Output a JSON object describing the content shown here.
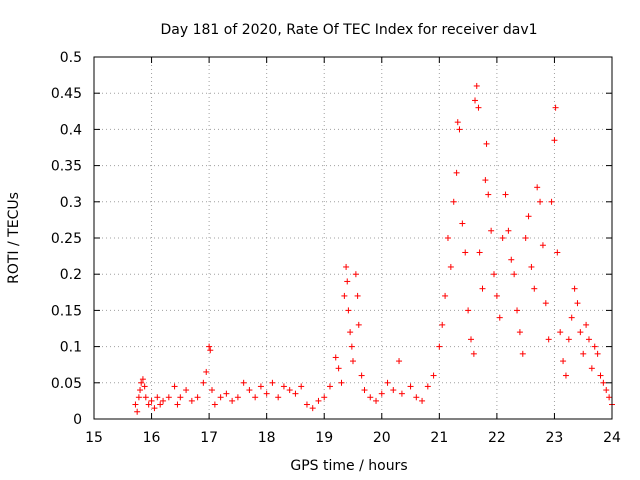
{
  "chart_data": {
    "type": "scatter",
    "title": "Day 181 of 2020, Rate Of TEC Index for receiver dav1",
    "xlabel": "GPS time / hours",
    "ylabel": "ROTI / TECUs",
    "xlim": [
      15,
      24
    ],
    "ylim": [
      0,
      0.5
    ],
    "grid": true,
    "marker": "+",
    "color": "#ff0000",
    "x_ticks": [
      {
        "value": 15,
        "label": "15"
      },
      {
        "value": 16,
        "label": "16"
      },
      {
        "value": 17,
        "label": "17"
      },
      {
        "value": 18,
        "label": "18"
      },
      {
        "value": 19,
        "label": "19"
      },
      {
        "value": 20,
        "label": "20"
      },
      {
        "value": 21,
        "label": "21"
      },
      {
        "value": 22,
        "label": "22"
      },
      {
        "value": 23,
        "label": "23"
      },
      {
        "value": 24,
        "label": "24"
      }
    ],
    "y_ticks": [
      {
        "value": 0,
        "label": "0"
      },
      {
        "value": 0.05,
        "label": "0.05"
      },
      {
        "value": 0.1,
        "label": "0.1"
      },
      {
        "value": 0.15,
        "label": "0.15"
      },
      {
        "value": 0.2,
        "label": "0.2"
      },
      {
        "value": 0.25,
        "label": "0.25"
      },
      {
        "value": 0.3,
        "label": "0.3"
      },
      {
        "value": 0.35,
        "label": "0.35"
      },
      {
        "value": 0.4,
        "label": "0.4"
      },
      {
        "value": 0.45,
        "label": "0.45"
      },
      {
        "value": 0.5,
        "label": "0.5"
      }
    ],
    "points": [
      [
        15.72,
        0.02
      ],
      [
        15.75,
        0.01
      ],
      [
        15.78,
        0.03
      ],
      [
        15.8,
        0.04
      ],
      [
        15.82,
        0.05
      ],
      [
        15.85,
        0.055
      ],
      [
        15.88,
        0.045
      ],
      [
        15.9,
        0.03
      ],
      [
        15.95,
        0.02
      ],
      [
        16.0,
        0.025
      ],
      [
        16.05,
        0.015
      ],
      [
        16.1,
        0.03
      ],
      [
        16.15,
        0.02
      ],
      [
        16.2,
        0.025
      ],
      [
        16.3,
        0.03
      ],
      [
        16.4,
        0.045
      ],
      [
        16.45,
        0.02
      ],
      [
        16.5,
        0.03
      ],
      [
        16.6,
        0.04
      ],
      [
        16.7,
        0.025
      ],
      [
        16.8,
        0.03
      ],
      [
        16.9,
        0.05
      ],
      [
        16.95,
        0.065
      ],
      [
        17.0,
        0.1
      ],
      [
        17.02,
        0.095
      ],
      [
        17.05,
        0.04
      ],
      [
        17.1,
        0.02
      ],
      [
        17.2,
        0.03
      ],
      [
        17.3,
        0.035
      ],
      [
        17.4,
        0.025
      ],
      [
        17.5,
        0.03
      ],
      [
        17.6,
        0.05
      ],
      [
        17.7,
        0.04
      ],
      [
        17.8,
        0.03
      ],
      [
        17.9,
        0.045
      ],
      [
        18.0,
        0.035
      ],
      [
        18.1,
        0.05
      ],
      [
        18.2,
        0.03
      ],
      [
        18.3,
        0.045
      ],
      [
        18.4,
        0.04
      ],
      [
        18.5,
        0.035
      ],
      [
        18.6,
        0.045
      ],
      [
        18.7,
        0.02
      ],
      [
        18.8,
        0.015
      ],
      [
        18.9,
        0.025
      ],
      [
        19.0,
        0.03
      ],
      [
        19.1,
        0.045
      ],
      [
        19.2,
        0.085
      ],
      [
        19.25,
        0.07
      ],
      [
        19.3,
        0.05
      ],
      [
        19.35,
        0.17
      ],
      [
        19.38,
        0.21
      ],
      [
        19.4,
        0.19
      ],
      [
        19.42,
        0.15
      ],
      [
        19.45,
        0.12
      ],
      [
        19.48,
        0.1
      ],
      [
        19.5,
        0.08
      ],
      [
        19.55,
        0.2
      ],
      [
        19.58,
        0.17
      ],
      [
        19.6,
        0.13
      ],
      [
        19.65,
        0.06
      ],
      [
        19.7,
        0.04
      ],
      [
        19.8,
        0.03
      ],
      [
        19.9,
        0.025
      ],
      [
        20.0,
        0.035
      ],
      [
        20.1,
        0.05
      ],
      [
        20.2,
        0.04
      ],
      [
        20.3,
        0.08
      ],
      [
        20.35,
        0.035
      ],
      [
        20.5,
        0.045
      ],
      [
        20.6,
        0.03
      ],
      [
        20.7,
        0.025
      ],
      [
        20.8,
        0.045
      ],
      [
        20.9,
        0.06
      ],
      [
        21.0,
        0.1
      ],
      [
        21.05,
        0.13
      ],
      [
        21.1,
        0.17
      ],
      [
        21.15,
        0.25
      ],
      [
        21.2,
        0.21
      ],
      [
        21.25,
        0.3
      ],
      [
        21.3,
        0.34
      ],
      [
        21.32,
        0.41
      ],
      [
        21.35,
        0.4
      ],
      [
        21.4,
        0.27
      ],
      [
        21.45,
        0.23
      ],
      [
        21.5,
        0.15
      ],
      [
        21.55,
        0.11
      ],
      [
        21.6,
        0.09
      ],
      [
        21.62,
        0.44
      ],
      [
        21.65,
        0.46
      ],
      [
        21.68,
        0.43
      ],
      [
        21.7,
        0.23
      ],
      [
        21.75,
        0.18
      ],
      [
        21.8,
        0.33
      ],
      [
        21.82,
        0.38
      ],
      [
        21.85,
        0.31
      ],
      [
        21.9,
        0.26
      ],
      [
        21.95,
        0.2
      ],
      [
        22.0,
        0.17
      ],
      [
        22.05,
        0.14
      ],
      [
        22.1,
        0.25
      ],
      [
        22.15,
        0.31
      ],
      [
        22.2,
        0.26
      ],
      [
        22.25,
        0.22
      ],
      [
        22.3,
        0.2
      ],
      [
        22.35,
        0.15
      ],
      [
        22.4,
        0.12
      ],
      [
        22.45,
        0.09
      ],
      [
        22.5,
        0.25
      ],
      [
        22.55,
        0.28
      ],
      [
        22.6,
        0.21
      ],
      [
        22.65,
        0.18
      ],
      [
        22.7,
        0.32
      ],
      [
        22.75,
        0.3
      ],
      [
        22.8,
        0.24
      ],
      [
        22.85,
        0.16
      ],
      [
        22.9,
        0.11
      ],
      [
        22.95,
        0.3
      ],
      [
        23.0,
        0.385
      ],
      [
        23.02,
        0.43
      ],
      [
        23.05,
        0.23
      ],
      [
        23.1,
        0.12
      ],
      [
        23.15,
        0.08
      ],
      [
        23.2,
        0.06
      ],
      [
        23.25,
        0.11
      ],
      [
        23.3,
        0.14
      ],
      [
        23.35,
        0.18
      ],
      [
        23.4,
        0.16
      ],
      [
        23.45,
        0.12
      ],
      [
        23.5,
        0.09
      ],
      [
        23.55,
        0.13
      ],
      [
        23.6,
        0.11
      ],
      [
        23.65,
        0.07
      ],
      [
        23.7,
        0.1
      ],
      [
        23.75,
        0.09
      ],
      [
        23.8,
        0.06
      ],
      [
        23.85,
        0.05
      ],
      [
        23.9,
        0.04
      ],
      [
        23.95,
        0.03
      ],
      [
        24.0,
        0.02
      ]
    ]
  }
}
